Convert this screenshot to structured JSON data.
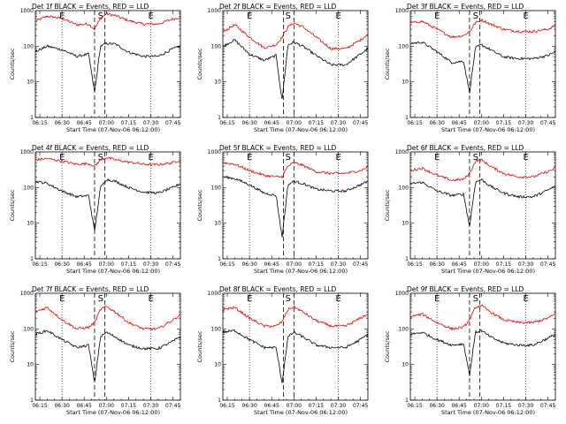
{
  "panel_titles": [
    "Det 1f BLACK = Events, RED = LLD",
    "Det 2f BLACK = Events, RED = LLD",
    "Det 3f BLACK = Events, RED = LLD",
    "Det 4f BLACK = Events, RED = LLD",
    "Det 5f BLACK = Events, RED = LLD",
    "Det 6f BLACK = Events, RED = LLD",
    "Det 7f BLACK = Events, RED = LLD",
    "Det 8f BLACK = Events, RED = LLD",
    "Det 9f BLACK = Events, RED = LLD"
  ],
  "xlabel": "Start Time (07-Nov-06 06:12:00)",
  "ylabel": "Counts/sec",
  "x_ticks": [
    "06:15",
    "06:30",
    "06:45",
    "07:00",
    "07:15",
    "07:30",
    "07:45"
  ],
  "y_ticks": [
    "1",
    "10",
    "100",
    "1000"
  ],
  "markers": {
    "E": "E",
    "S": "S"
  },
  "colors": {
    "events": "#000000",
    "lld": "#e00000",
    "axes": "#000000"
  },
  "chart_data": {
    "type": "line",
    "panel_count": 9,
    "layout": "3x3 grid",
    "x_axis": {
      "label": "Start Time (07-Nov-06 06:12:00)",
      "start": "06:12",
      "end": "07:50",
      "ticks": [
        "06:15",
        "06:30",
        "06:45",
        "07:00",
        "07:15",
        "07:30",
        "07:45"
      ],
      "grid": "dotted vertical at 06:30 and 07:30"
    },
    "y_axis": {
      "label": "Counts/sec",
      "scale": "log",
      "range": [
        1,
        1000
      ],
      "ticks": [
        "1",
        "10",
        "100",
        "1000"
      ]
    },
    "series": [
      {
        "name": "BLACK = Events",
        "color": "#000000"
      },
      {
        "name": "RED = LLD",
        "color": "#e00000"
      }
    ],
    "vertical_markers": [
      {
        "label": "E",
        "time": "06:30",
        "style": "dotted"
      },
      {
        "label": "S",
        "time": "06:56",
        "style": "dashed"
      },
      {
        "label": "E",
        "time": "07:30",
        "style": "dotted"
      }
    ],
    "panels": [
      {
        "title": "Det 1f BLACK = Events, RED = LLD",
        "dashed_lines": [
          "06:52",
          "06:59"
        ],
        "events": {
          "t": [
            "06:12",
            "06:20",
            "06:30",
            "06:40",
            "06:48",
            "06:52",
            "06:56",
            "07:00",
            "07:06",
            "07:15",
            "07:25",
            "07:35",
            "07:45",
            "07:50"
          ],
          "v": [
            70,
            100,
            80,
            52,
            60,
            5,
            100,
            120,
            115,
            68,
            52,
            52,
            85,
            100
          ]
        },
        "lld": {
          "t": [
            "06:12",
            "06:20",
            "06:30",
            "06:40",
            "06:48",
            "06:52",
            "06:56",
            "07:00",
            "07:06",
            "07:15",
            "07:25",
            "07:35",
            "07:45",
            "07:50"
          ],
          "v": [
            500,
            700,
            600,
            400,
            420,
            300,
            600,
            820,
            720,
            520,
            420,
            420,
            580,
            650
          ]
        }
      },
      {
        "title": "Det 2f BLACK = Events, RED = LLD",
        "dashed_lines": [
          "06:53",
          "07:00"
        ],
        "events": {
          "t": [
            "06:12",
            "06:20",
            "06:30",
            "06:40",
            "06:48",
            "06:52",
            "06:56",
            "07:00",
            "07:06",
            "07:15",
            "07:25",
            "07:35",
            "07:45",
            "07:50"
          ],
          "v": [
            100,
            150,
            60,
            40,
            55,
            3,
            110,
            130,
            100,
            55,
            30,
            30,
            60,
            85
          ]
        },
        "lld": {
          "t": [
            "06:12",
            "06:20",
            "06:30",
            "06:40",
            "06:48",
            "06:52",
            "06:56",
            "07:00",
            "07:06",
            "07:15",
            "07:25",
            "07:35",
            "07:45",
            "07:50"
          ],
          "v": [
            250,
            400,
            180,
            90,
            110,
            180,
            350,
            450,
            350,
            180,
            85,
            85,
            150,
            220
          ]
        }
      },
      {
        "title": "Det 3f BLACK = Events, RED = LLD",
        "dashed_lines": [
          "06:52",
          "06:59"
        ],
        "events": {
          "t": [
            "06:12",
            "06:20",
            "06:30",
            "06:40",
            "06:48",
            "06:52",
            "06:56",
            "07:00",
            "07:06",
            "07:15",
            "07:25",
            "07:35",
            "07:45",
            "07:50"
          ],
          "v": [
            120,
            130,
            70,
            35,
            38,
            5,
            90,
            110,
            80,
            50,
            45,
            45,
            55,
            70
          ]
        },
        "lld": {
          "t": [
            "06:12",
            "06:20",
            "06:30",
            "06:40",
            "06:48",
            "06:52",
            "06:56",
            "07:00",
            "07:06",
            "07:15",
            "07:25",
            "07:35",
            "07:45",
            "07:50"
          ],
          "v": [
            450,
            500,
            300,
            180,
            200,
            260,
            450,
            550,
            420,
            300,
            260,
            260,
            300,
            380
          ]
        }
      },
      {
        "title": "Det 4f BLACK = Events, RED = LLD",
        "dashed_lines": [
          "06:52",
          "06:59"
        ],
        "events": {
          "t": [
            "06:12",
            "06:20",
            "06:30",
            "06:40",
            "06:48",
            "06:52",
            "06:56",
            "07:00",
            "07:06",
            "07:15",
            "07:25",
            "07:35",
            "07:45",
            "07:50"
          ],
          "v": [
            150,
            130,
            80,
            55,
            60,
            6,
            100,
            170,
            150,
            100,
            75,
            70,
            100,
            130
          ]
        },
        "lld": {
          "t": [
            "06:12",
            "06:20",
            "06:30",
            "06:40",
            "06:48",
            "06:52",
            "06:56",
            "07:00",
            "07:06",
            "07:15",
            "07:25",
            "07:35",
            "07:45",
            "07:50"
          ],
          "v": [
            600,
            650,
            550,
            450,
            470,
            400,
            600,
            700,
            600,
            520,
            450,
            440,
            500,
            600
          ]
        }
      },
      {
        "title": "Det 5f BLACK = Events, RED = LLD",
        "dashed_lines": [
          "06:53",
          "07:00"
        ],
        "events": {
          "t": [
            "06:12",
            "06:20",
            "06:30",
            "06:40",
            "06:48",
            "06:52",
            "06:56",
            "07:00",
            "07:06",
            "07:15",
            "07:25",
            "07:35",
            "07:45",
            "07:50"
          ],
          "v": [
            200,
            180,
            120,
            70,
            60,
            4,
            120,
            150,
            130,
            90,
            80,
            80,
            120,
            150
          ]
        },
        "lld": {
          "t": [
            "06:12",
            "06:20",
            "06:30",
            "06:40",
            "06:48",
            "06:52",
            "06:56",
            "07:00",
            "07:06",
            "07:15",
            "07:25",
            "07:35",
            "07:45",
            "07:50"
          ],
          "v": [
            500,
            450,
            300,
            220,
            200,
            200,
            400,
            500,
            420,
            280,
            250,
            250,
            300,
            380
          ]
        }
      },
      {
        "title": "Det 6f BLACK = Events, RED = LLD",
        "dashed_lines": [
          "06:52",
          "06:59"
        ],
        "events": {
          "t": [
            "06:12",
            "06:20",
            "06:30",
            "06:40",
            "06:48",
            "06:52",
            "06:56",
            "07:00",
            "07:06",
            "07:15",
            "07:25",
            "07:35",
            "07:45",
            "07:50"
          ],
          "v": [
            130,
            140,
            80,
            60,
            65,
            8,
            140,
            170,
            110,
            70,
            55,
            55,
            85,
            110
          ]
        },
        "lld": {
          "t": [
            "06:12",
            "06:20",
            "06:30",
            "06:40",
            "06:48",
            "06:52",
            "06:56",
            "07:00",
            "07:06",
            "07:15",
            "07:25",
            "07:35",
            "07:45",
            "07:50"
          ],
          "v": [
            300,
            350,
            220,
            160,
            170,
            250,
            550,
            600,
            400,
            250,
            200,
            200,
            280,
            350
          ]
        }
      },
      {
        "title": "Det 7f BLACK = Events, RED = LLD",
        "dashed_lines": [
          "06:52",
          "06:59"
        ],
        "events": {
          "t": [
            "06:12",
            "06:20",
            "06:30",
            "06:40",
            "06:48",
            "06:52",
            "06:56",
            "07:00",
            "07:06",
            "07:15",
            "07:25",
            "07:35",
            "07:45",
            "07:50"
          ],
          "v": [
            70,
            90,
            50,
            30,
            35,
            3,
            60,
            80,
            60,
            35,
            28,
            28,
            45,
            60
          ]
        },
        "lld": {
          "t": [
            "06:12",
            "06:20",
            "06:30",
            "06:40",
            "06:48",
            "06:52",
            "06:56",
            "07:00",
            "07:06",
            "07:15",
            "07:25",
            "07:35",
            "07:45",
            "07:50"
          ],
          "v": [
            300,
            400,
            180,
            100,
            110,
            150,
            350,
            420,
            300,
            150,
            100,
            100,
            180,
            250
          ]
        }
      },
      {
        "title": "Det 8f BLACK = Events, RED = LLD",
        "dashed_lines": [
          "06:53",
          "07:00"
        ],
        "events": {
          "t": [
            "06:12",
            "06:20",
            "06:30",
            "06:40",
            "06:48",
            "06:52",
            "06:56",
            "07:00",
            "07:06",
            "07:15",
            "07:25",
            "07:35",
            "07:45",
            "07:50"
          ],
          "v": [
            80,
            90,
            50,
            30,
            30,
            3,
            60,
            80,
            60,
            35,
            30,
            30,
            50,
            70
          ]
        },
        "lld": {
          "t": [
            "06:12",
            "06:20",
            "06:30",
            "06:40",
            "06:48",
            "06:52",
            "06:56",
            "07:00",
            "07:06",
            "07:15",
            "07:25",
            "07:35",
            "07:45",
            "07:50"
          ],
          "v": [
            350,
            400,
            200,
            120,
            120,
            160,
            350,
            420,
            300,
            170,
            120,
            120,
            200,
            260
          ]
        }
      },
      {
        "title": "Det 9f BLACK = Events, RED = LLD",
        "dashed_lines": [
          "06:52",
          "06:59"
        ],
        "events": {
          "t": [
            "06:12",
            "06:20",
            "06:30",
            "06:40",
            "06:48",
            "06:52",
            "06:56",
            "07:00",
            "07:06",
            "07:15",
            "07:25",
            "07:35",
            "07:45",
            "07:50"
          ],
          "v": [
            70,
            80,
            50,
            35,
            38,
            5,
            80,
            90,
            60,
            40,
            35,
            35,
            55,
            70
          ]
        },
        "lld": {
          "t": [
            "06:12",
            "06:20",
            "06:30",
            "06:40",
            "06:48",
            "06:52",
            "06:56",
            "07:00",
            "07:06",
            "07:15",
            "07:25",
            "07:35",
            "07:45",
            "07:50"
          ],
          "v": [
            220,
            260,
            150,
            100,
            110,
            180,
            400,
            450,
            300,
            180,
            150,
            150,
            200,
            260
          ]
        }
      }
    ]
  }
}
